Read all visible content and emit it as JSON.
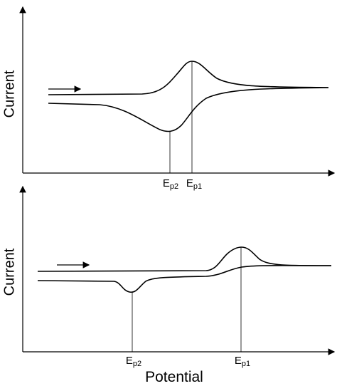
{
  "panels": [
    {
      "y_label": "Current",
      "markers": [
        {
          "label": "E",
          "subscript": "p2"
        },
        {
          "label": "E",
          "subscript": "p1"
        }
      ]
    },
    {
      "y_label": "Current",
      "markers": [
        {
          "label": "E",
          "subscript": "p2"
        },
        {
          "label": "E",
          "subscript": "p1"
        }
      ]
    }
  ],
  "x_label": "Potential"
}
